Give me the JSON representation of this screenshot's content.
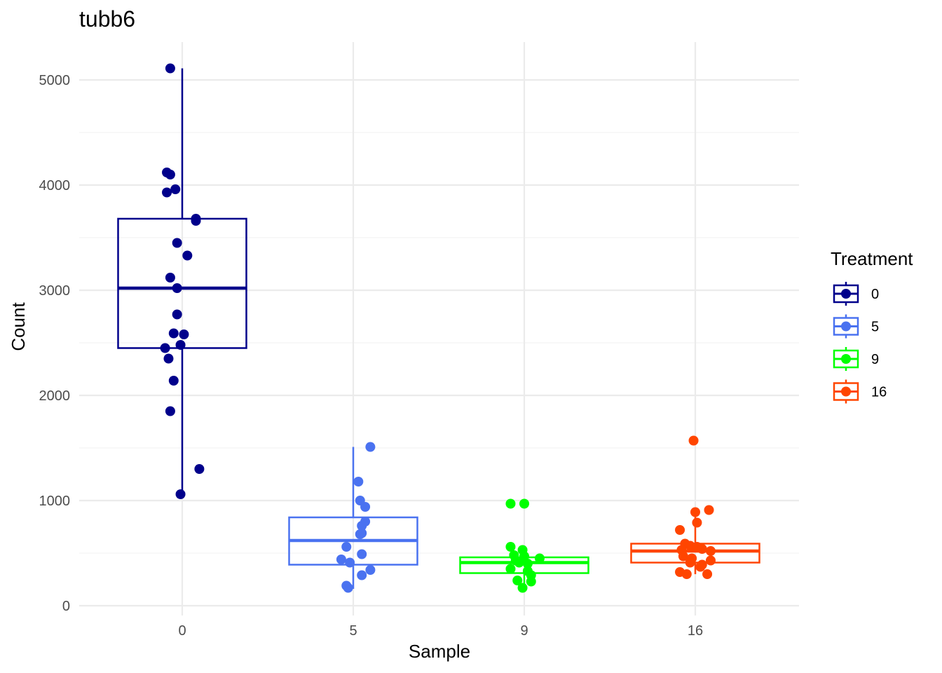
{
  "chart_data": {
    "type": "boxplot",
    "title": "tubb6",
    "xlabel": "Sample",
    "ylabel": "Count",
    "categories": [
      "0",
      "5",
      "9",
      "16"
    ],
    "ylim": [
      0,
      5350
    ],
    "yticks": [
      0,
      1000,
      2000,
      3000,
      4000,
      5000
    ],
    "grid": true,
    "legend": {
      "title": "Treatment",
      "placement": "right"
    },
    "series": [
      {
        "name": "0",
        "color": "#00008B",
        "box": {
          "whisker_low": 1060,
          "q1": 2450,
          "median": 3020,
          "q3": 3680,
          "whisker_high": 5110
        },
        "points": [
          {
            "dx": -0.07,
            "y": 5110
          },
          {
            "dx": -0.09,
            "y": 4120
          },
          {
            "dx": -0.07,
            "y": 4100
          },
          {
            "dx": -0.04,
            "y": 3960
          },
          {
            "dx": -0.09,
            "y": 3930
          },
          {
            "dx": 0.08,
            "y": 3680
          },
          {
            "dx": 0.08,
            "y": 3660
          },
          {
            "dx": -0.03,
            "y": 3450
          },
          {
            "dx": 0.03,
            "y": 3330
          },
          {
            "dx": -0.07,
            "y": 3120
          },
          {
            "dx": -0.03,
            "y": 3020
          },
          {
            "dx": -0.03,
            "y": 2770
          },
          {
            "dx": -0.05,
            "y": 2590
          },
          {
            "dx": 0.01,
            "y": 2580
          },
          {
            "dx": -0.01,
            "y": 2480
          },
          {
            "dx": -0.1,
            "y": 2450
          },
          {
            "dx": -0.08,
            "y": 2350
          },
          {
            "dx": -0.05,
            "y": 2140
          },
          {
            "dx": -0.07,
            "y": 1850
          },
          {
            "dx": 0.1,
            "y": 1300
          },
          {
            "dx": -0.01,
            "y": 1060
          }
        ]
      },
      {
        "name": "5",
        "color": "#4A72F0",
        "box": {
          "whisker_low": 160,
          "q1": 390,
          "median": 620,
          "q3": 840,
          "whisker_high": 1510
        },
        "points": [
          {
            "dx": 0.1,
            "y": 1510
          },
          {
            "dx": 0.03,
            "y": 1180
          },
          {
            "dx": 0.04,
            "y": 1000
          },
          {
            "dx": 0.07,
            "y": 940
          },
          {
            "dx": 0.07,
            "y": 800
          },
          {
            "dx": 0.05,
            "y": 760
          },
          {
            "dx": 0.05,
            "y": 690
          },
          {
            "dx": 0.04,
            "y": 680
          },
          {
            "dx": -0.04,
            "y": 560
          },
          {
            "dx": 0.05,
            "y": 490
          },
          {
            "dx": -0.07,
            "y": 440
          },
          {
            "dx": -0.02,
            "y": 410
          },
          {
            "dx": 0.1,
            "y": 340
          },
          {
            "dx": 0.05,
            "y": 290
          },
          {
            "dx": -0.04,
            "y": 190
          },
          {
            "dx": -0.03,
            "y": 170
          }
        ]
      },
      {
        "name": "9",
        "color": "#00FF00",
        "box": {
          "whisker_low": 170,
          "q1": 310,
          "median": 410,
          "q3": 460,
          "whisker_high": 560
        },
        "points": [
          {
            "dx": -0.08,
            "y": 970
          },
          {
            "dx": 0.0,
            "y": 970
          },
          {
            "dx": -0.08,
            "y": 560
          },
          {
            "dx": -0.01,
            "y": 530
          },
          {
            "dx": -0.06,
            "y": 480
          },
          {
            "dx": 0.0,
            "y": 470
          },
          {
            "dx": 0.09,
            "y": 450
          },
          {
            "dx": -0.05,
            "y": 430
          },
          {
            "dx": -0.03,
            "y": 410
          },
          {
            "dx": 0.02,
            "y": 400
          },
          {
            "dx": -0.08,
            "y": 350
          },
          {
            "dx": 0.02,
            "y": 330
          },
          {
            "dx": 0.04,
            "y": 290
          },
          {
            "dx": -0.04,
            "y": 240
          },
          {
            "dx": 0.04,
            "y": 230
          },
          {
            "dx": -0.01,
            "y": 170
          }
        ]
      },
      {
        "name": "16",
        "color": "#FF4500",
        "box": {
          "whisker_low": 300,
          "q1": 410,
          "median": 520,
          "q3": 590,
          "whisker_high": 900
        },
        "points": [
          {
            "dx": -0.01,
            "y": 1570
          },
          {
            "dx": 0.08,
            "y": 910
          },
          {
            "dx": 0.0,
            "y": 890
          },
          {
            "dx": 0.01,
            "y": 790
          },
          {
            "dx": -0.09,
            "y": 720
          },
          {
            "dx": -0.06,
            "y": 590
          },
          {
            "dx": -0.03,
            "y": 570
          },
          {
            "dx": 0.01,
            "y": 560
          },
          {
            "dx": 0.04,
            "y": 540
          },
          {
            "dx": -0.08,
            "y": 530
          },
          {
            "dx": 0.09,
            "y": 520
          },
          {
            "dx": -0.07,
            "y": 470
          },
          {
            "dx": -0.02,
            "y": 450
          },
          {
            "dx": 0.09,
            "y": 430
          },
          {
            "dx": -0.03,
            "y": 410
          },
          {
            "dx": 0.04,
            "y": 390
          },
          {
            "dx": 0.03,
            "y": 370
          },
          {
            "dx": -0.09,
            "y": 320
          },
          {
            "dx": -0.05,
            "y": 300
          },
          {
            "dx": 0.07,
            "y": 300
          }
        ]
      }
    ]
  }
}
